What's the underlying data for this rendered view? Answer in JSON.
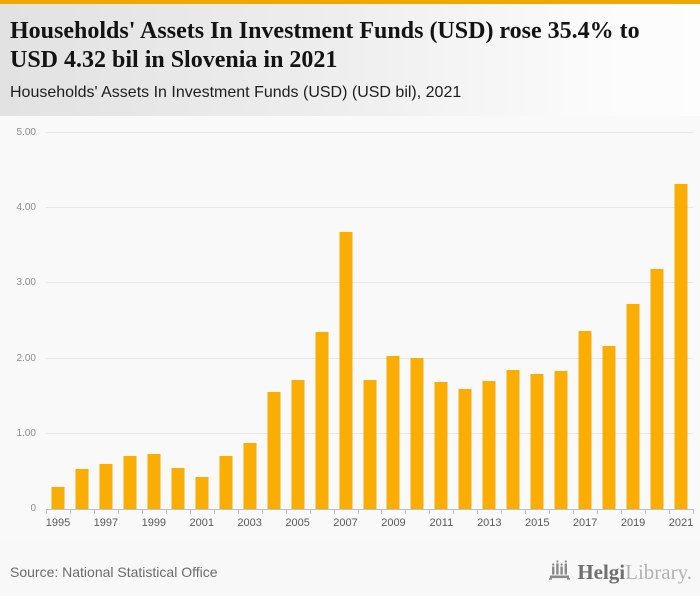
{
  "chart_data": {
    "type": "bar",
    "title": "Households' Assets In Investment Funds (USD) rose 35.4% to USD 4.32 bil in Slovenia in 2021",
    "subtitle": "Households' Assets In Investment Funds (USD) (USD bil), 2021",
    "categories": [
      "1995",
      "1996",
      "1997",
      "1998",
      "1999",
      "2000",
      "2001",
      "2002",
      "2003",
      "2004",
      "2005",
      "2006",
      "2007",
      "2008",
      "2009",
      "2010",
      "2011",
      "2012",
      "2013",
      "2014",
      "2015",
      "2016",
      "2017",
      "2018",
      "2019",
      "2020",
      "2021"
    ],
    "values": [
      0.29,
      0.53,
      0.6,
      0.7,
      0.73,
      0.55,
      0.42,
      0.71,
      0.88,
      1.55,
      1.72,
      2.35,
      3.69,
      1.72,
      2.04,
      2.01,
      1.69,
      1.6,
      1.7,
      1.85,
      1.8,
      1.84,
      2.37,
      2.17,
      2.72,
      3.19,
      4.32
    ],
    "yticks": [
      {
        "value": 5,
        "label": "5.00"
      },
      {
        "value": 4,
        "label": "4.00"
      },
      {
        "value": 3,
        "label": "3.00"
      },
      {
        "value": 2,
        "label": "2.00"
      },
      {
        "value": 1,
        "label": "1.00"
      },
      {
        "value": 0,
        "label": "0"
      }
    ],
    "ylim": [
      0,
      5
    ],
    "x_label_step": 2,
    "grid": true,
    "legend_position": "none",
    "bar_color": "#faae04"
  },
  "footer": {
    "source": "Source: National Statistical Office",
    "logo": {
      "helgi": "Helgi",
      "library": "Library."
    }
  },
  "colors": {
    "accent_strip": "#f1a702",
    "bar": "#faae04",
    "axis": "#b5bfd9",
    "gridline": "#e8e8e8"
  }
}
